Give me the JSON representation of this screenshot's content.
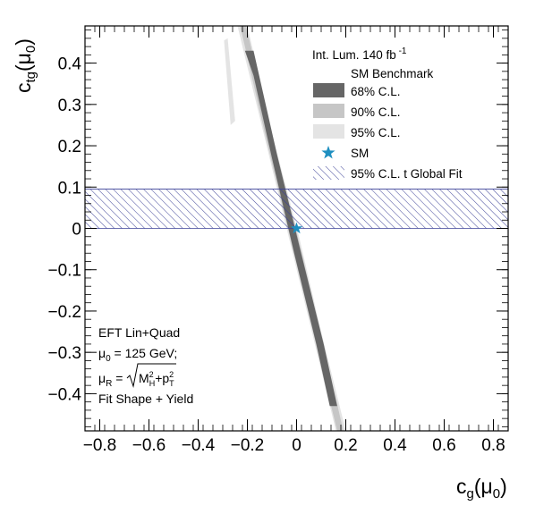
{
  "chart_data": {
    "type": "contour",
    "xlabel": {
      "main": "c",
      "sub": "g",
      "arg": "(μ",
      "argsub": "0",
      "close": ")"
    },
    "ylabel": {
      "main": "c",
      "sub": "tg",
      "arg": "(μ",
      "argsub": "0",
      "close": ")"
    },
    "xlim": [
      -0.86,
      0.86
    ],
    "ylim": [
      -0.49,
      0.49
    ],
    "x_ticks": [
      -0.8,
      -0.6,
      -0.4,
      -0.2,
      0,
      0.2,
      0.4,
      0.6,
      0.8
    ],
    "x_tick_labels": [
      "−0.8",
      "−0.6",
      "−0.4",
      "−0.2",
      "0",
      "0.2",
      "0.4",
      "0.6",
      "0.8"
    ],
    "y_ticks": [
      -0.4,
      -0.3,
      -0.2,
      -0.1,
      0,
      0.1,
      0.2,
      0.3,
      0.4
    ],
    "y_tick_labels": [
      "−0.4",
      "−0.3",
      "−0.2",
      "−0.1",
      "0",
      "0.1",
      "0.2",
      "0.3",
      "0.4"
    ],
    "band_95_global_fit": {
      "y_min": 0.0,
      "y_max": 0.095,
      "color": "#3a3f96"
    },
    "regions": [
      {
        "name": "95% C.L.",
        "color": "#e4e4e4",
        "polygon": [
          [
            -0.24,
            0.49
          ],
          [
            -0.2,
            0.49
          ],
          [
            -0.1,
            0.23
          ],
          [
            0.01,
            -0.02
          ],
          [
            0.1,
            -0.25
          ],
          [
            0.2,
            -0.49
          ],
          [
            0.16,
            -0.49
          ],
          [
            0.07,
            -0.27
          ],
          [
            -0.02,
            -0.05
          ],
          [
            -0.13,
            0.22
          ],
          [
            -0.22,
            0.44
          ]
        ]
      },
      {
        "name": "95% C.L.",
        "color": "#e4e4e4",
        "polygon": [
          [
            -0.295,
            0.455
          ],
          [
            -0.28,
            0.46
          ],
          [
            -0.25,
            0.26
          ],
          [
            -0.268,
            0.25
          ]
        ]
      },
      {
        "name": "90% C.L.",
        "color": "#c6c6c6",
        "polygon": [
          [
            -0.23,
            0.49
          ],
          [
            -0.205,
            0.49
          ],
          [
            -0.1,
            0.22
          ],
          [
            0.005,
            -0.02
          ],
          [
            0.1,
            -0.26
          ],
          [
            0.19,
            -0.49
          ],
          [
            0.165,
            -0.49
          ],
          [
            0.075,
            -0.27
          ],
          [
            -0.015,
            -0.05
          ],
          [
            -0.125,
            0.22
          ],
          [
            -0.21,
            0.44
          ]
        ]
      },
      {
        "name": "68% C.L.",
        "color": "#666666",
        "polygon": [
          [
            -0.21,
            0.43
          ],
          [
            -0.175,
            0.43
          ],
          [
            -0.08,
            0.18
          ],
          [
            0.01,
            -0.04
          ],
          [
            0.11,
            -0.28
          ],
          [
            0.165,
            -0.43
          ],
          [
            0.135,
            -0.43
          ],
          [
            0.08,
            -0.28
          ],
          [
            -0.01,
            -0.06
          ],
          [
            -0.1,
            0.17
          ],
          [
            -0.175,
            0.37
          ]
        ]
      }
    ],
    "sm_point": {
      "x": 0,
      "y": 0,
      "color": "#1e8fc0"
    },
    "legend": {
      "header": {
        "text": "Int. Lum. 140 fb",
        "sup": "-1"
      },
      "title": "SM Benchmark",
      "items": [
        {
          "label": "68% C.L.",
          "color": "#666666",
          "kind": "box"
        },
        {
          "label": "90% C.L.",
          "color": "#c6c6c6",
          "kind": "box"
        },
        {
          "label": "95% C.L.",
          "color": "#e4e4e4",
          "kind": "box"
        },
        {
          "label": "SM",
          "color": "#1e8fc0",
          "kind": "star"
        },
        {
          "label": "95% C.L. t Global Fit",
          "color": "#3a3f96",
          "kind": "hatch"
        }
      ]
    },
    "annotation": {
      "line1": "EFT Lin+Quad",
      "line2": {
        "mu": "μ",
        "sub": "0",
        "rest": " = 125 GeV;"
      },
      "line3": {
        "mu": "μ",
        "sub": "R",
        "eq": " = ",
        "m": "M",
        "msup": "2",
        "msub": "H",
        "plus": "+p",
        "psup": "2",
        "psub": "T"
      },
      "line4": "Fit Shape + Yield"
    }
  }
}
